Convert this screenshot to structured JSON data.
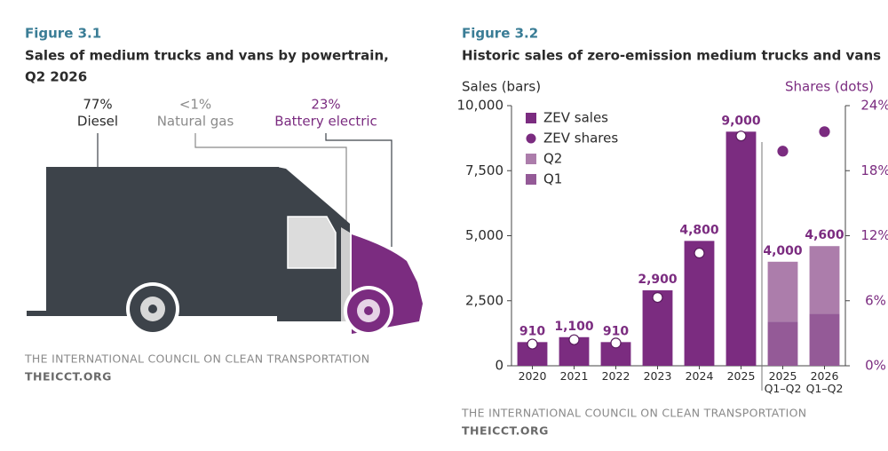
{
  "figure_3_1": {
    "figure_label": "Figure 3.1",
    "title_line1": "Sales of medium trucks and vans by powertrain,",
    "title_line2": "Q2 2026",
    "segments": [
      {
        "share": "77%",
        "name": "Diesel"
      },
      {
        "share": "<1%",
        "name": "Natural gas"
      },
      {
        "share": "23%",
        "name": "Battery electric"
      }
    ],
    "source": "THE INTERNATIONAL COUNCIL ON CLEAN TRANSPORTATION",
    "url": "THEICCT.ORG"
  },
  "chart_data": {
    "type": "bar",
    "figure_label": "Figure 3.2",
    "title": "Historic sales of zero-emission medium trucks and vans",
    "ylabel": "Sales (bars)",
    "y2label": "Shares (dots)",
    "categories": [
      "2020",
      "2021",
      "2022",
      "2023",
      "2024",
      "2025",
      "2025\nQ1–Q2",
      "2026\nQ1–Q2"
    ],
    "series": [
      {
        "name": "ZEV sales",
        "mark": "bar",
        "color": "#7b2c80",
        "values": [
          910,
          1100,
          910,
          2900,
          4800,
          9000,
          null,
          null
        ],
        "value_labels": [
          "910",
          "1,100",
          "910",
          "2,900",
          "4,800",
          "9,000",
          null,
          null
        ]
      },
      {
        "name": "ZEV shares",
        "mark": "dot",
        "axis": "y2",
        "color": "#7b2c80",
        "values": [
          2.0,
          2.4,
          2.1,
          6.3,
          10.4,
          21.2,
          19.8,
          21.6
        ]
      },
      {
        "name": "Q2",
        "mark": "bar",
        "color": "#ac7dab",
        "values": [
          null,
          null,
          null,
          null,
          null,
          null,
          2300,
          2600
        ]
      },
      {
        "name": "Q1",
        "mark": "bar",
        "color": "#945a97",
        "values": [
          null,
          null,
          null,
          null,
          null,
          null,
          1700,
          2000
        ]
      }
    ],
    "stack_totals": {
      "values": [
        null,
        null,
        null,
        null,
        null,
        null,
        4000,
        4600
      ],
      "value_labels": [
        null,
        null,
        null,
        null,
        null,
        null,
        "4,000",
        "4,600"
      ]
    },
    "ylim": [
      0,
      10000
    ],
    "yticks": [
      0,
      {
        "value": 2500,
        "label": "2,500"
      },
      {
        "value": 5000,
        "label": "5,000"
      },
      {
        "value": 7500,
        "label": "7,500"
      },
      {
        "value": 10000,
        "label": "10,000"
      }
    ],
    "y2lim": [
      0,
      24
    ],
    "y2ticks": [
      {
        "value": 0,
        "label": "0%"
      },
      {
        "value": 6,
        "label": "6%"
      },
      {
        "value": 12,
        "label": "12%"
      },
      {
        "value": 18,
        "label": "18%"
      },
      {
        "value": 24,
        "label": "24%"
      }
    ],
    "source": "THE INTERNATIONAL COUNCIL ON CLEAN TRANSPORTATION",
    "url": "THEICCT.ORG"
  }
}
